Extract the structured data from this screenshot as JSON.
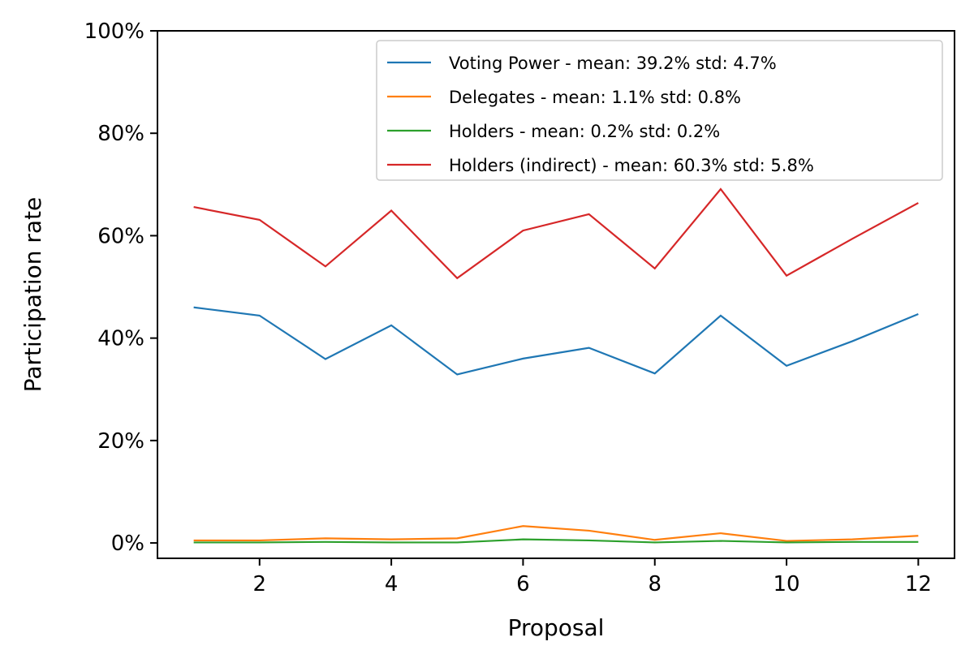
{
  "chart_data": {
    "type": "line",
    "title": "",
    "xlabel": "Proposal",
    "ylabel": "Participation rate",
    "x": [
      1,
      2,
      3,
      4,
      5,
      6,
      7,
      8,
      9,
      10,
      11,
      12
    ],
    "xlim": [
      0.45,
      12.55
    ],
    "ylim": [
      -3,
      100
    ],
    "xticks": [
      2,
      4,
      6,
      8,
      10,
      12
    ],
    "yticks": [
      0,
      20,
      40,
      60,
      80,
      100
    ],
    "ytick_labels": [
      "0%",
      "20%",
      "40%",
      "60%",
      "80%",
      "100%"
    ],
    "grid": false,
    "legend_position": "top-right",
    "series": [
      {
        "name": "Voting Power - mean: 39.2%  std: 4.7%",
        "color": "#1f77b4",
        "values": [
          46.0,
          44.4,
          35.9,
          42.5,
          32.9,
          36.0,
          38.1,
          33.1,
          44.4,
          34.6,
          39.4,
          44.7
        ]
      },
      {
        "name": "Delegates - mean: 1.1%  std: 0.8%",
        "color": "#ff7f0e",
        "values": [
          0.5,
          0.5,
          0.9,
          0.7,
          0.9,
          3.3,
          2.4,
          0.6,
          1.9,
          0.4,
          0.7,
          1.4
        ]
      },
      {
        "name": "Holders - mean: 0.2%  std: 0.2%",
        "color": "#2ca02c",
        "values": [
          0.1,
          0.1,
          0.2,
          0.1,
          0.1,
          0.7,
          0.5,
          0.1,
          0.4,
          0.1,
          0.2,
          0.2
        ]
      },
      {
        "name": "Holders (indirect) - mean: 60.3%  std: 5.8%",
        "color": "#d62728",
        "values": [
          65.6,
          63.1,
          54.0,
          64.9,
          51.7,
          61.0,
          64.2,
          53.6,
          69.1,
          52.2,
          59.4,
          66.4
        ]
      }
    ]
  }
}
